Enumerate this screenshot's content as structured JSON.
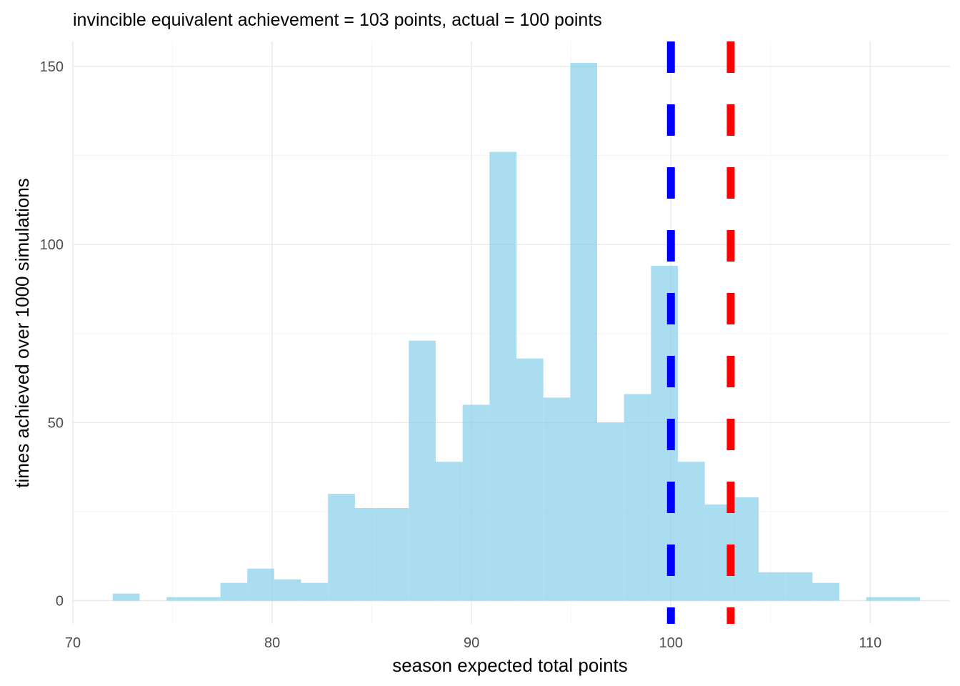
{
  "chart_data": {
    "type": "bar",
    "title": "invincible equivalent achievement = 103 points, actual = 100 points",
    "xlabel": "season expected total points",
    "ylabel": "times achieved over 1000 simulations",
    "xlim": [
      70,
      114
    ],
    "ylim": [
      -6.5,
      157
    ],
    "x_ticks": [
      70,
      80,
      90,
      100,
      110
    ],
    "y_ticks": [
      0,
      50,
      100,
      150
    ],
    "x_tick_labels": [
      "70",
      "80",
      "90",
      "100",
      "110"
    ],
    "y_tick_labels": [
      "0",
      "50",
      "100",
      "150"
    ],
    "bin_width": 1.35,
    "bin_start": 72.0,
    "counts": [
      2,
      0,
      1,
      1,
      5,
      9,
      6,
      5,
      30,
      26,
      26,
      73,
      39,
      55,
      126,
      68,
      57,
      151,
      50,
      58,
      94,
      39,
      27,
      29,
      8,
      8,
      5,
      0,
      1,
      1
    ],
    "fill_color": "#87ceeb",
    "fill_opacity": 0.7,
    "grid": true,
    "reference_lines": [
      {
        "x": 100,
        "color": "#0000ff",
        "style": "dashed"
      },
      {
        "x": 103,
        "color": "#ff0000",
        "style": "dashed"
      }
    ]
  }
}
